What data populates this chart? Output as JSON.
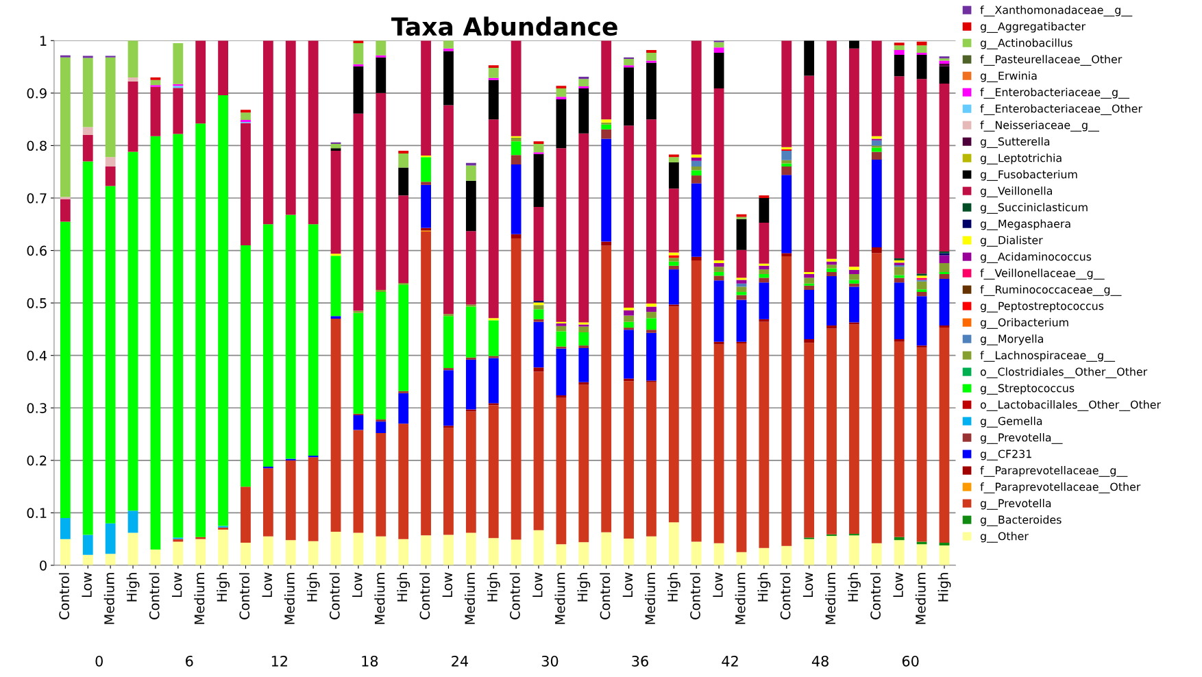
{
  "chart_data": {
    "type": "bar",
    "stacked": true,
    "title": "Taxa Abundance",
    "categories": [
      "Control",
      "Low",
      "Medium",
      "High",
      "Control",
      "Low",
      "Medium",
      "High",
      "Control",
      "Low",
      "Medium",
      "High",
      "Control",
      "Low",
      "Medium",
      "High",
      "Control",
      "Low",
      "Medium",
      "High",
      "Control",
      "Low",
      "Medium",
      "High",
      "Control",
      "Low",
      "Medium",
      "High",
      "Control",
      "Low",
      "Medium",
      "High",
      "Control",
      "Low",
      "Medium",
      "High",
      "Control",
      "Low",
      "Medium",
      "High"
    ],
    "annotations": [
      "0",
      "6",
      "12",
      "18",
      "24",
      "30",
      "36",
      "42",
      "48",
      "60"
    ],
    "ylim": [
      0,
      1
    ],
    "yticks": [
      0,
      0.1,
      0.2,
      0.3,
      0.4,
      0.5,
      0.6,
      0.7,
      0.8,
      0.9,
      1
    ],
    "grid": "y",
    "legend": "right",
    "series": [
      {
        "name": "g__Other",
        "color": "#ffff99",
        "values": [
          0.05,
          0.02,
          0.022,
          0.062,
          0.03,
          0.045,
          0.05,
          0.068,
          0.043,
          0.055,
          0.048,
          0.046,
          0.064,
          0.062,
          0.055,
          0.05,
          0.057,
          0.058,
          0.062,
          0.052,
          0.049,
          0.067,
          0.04,
          0.044,
          0.063,
          0.051,
          0.055,
          0.082,
          0.045,
          0.042,
          0.025,
          0.033,
          0.037,
          0.05,
          0.056,
          0.057,
          0.042,
          0.048,
          0.04,
          0.038
        ]
      },
      {
        "name": "g__Bacteroides",
        "color": "#108a10",
        "values": [
          0,
          0,
          0,
          0,
          0,
          0,
          0,
          0,
          0,
          0,
          0,
          0,
          0,
          0,
          0,
          0,
          0,
          0,
          0,
          0,
          0,
          0,
          0,
          0,
          0,
          0,
          0,
          0,
          0,
          0,
          0,
          0,
          0,
          0.003,
          0.003,
          0.003,
          0,
          0.006,
          0.005,
          0.005
        ]
      },
      {
        "name": "g__Prevotella",
        "color": "#d0381e",
        "values": [
          0,
          0,
          0,
          0,
          0,
          0.005,
          0.004,
          0.004,
          0.107,
          0.13,
          0.152,
          0.16,
          0.406,
          0.196,
          0.197,
          0.22,
          0.579,
          0.204,
          0.231,
          0.253,
          0.574,
          0.302,
          0.279,
          0.3,
          0.546,
          0.3,
          0.294,
          0.411,
          0.536,
          0.379,
          0.398,
          0.431,
          0.552,
          0.371,
          0.392,
          0.399,
          0.553,
          0.372,
          0.37,
          0.41
        ]
      },
      {
        "name": "f__Paraprevotellaceae__Other",
        "color": "#ff9900",
        "values": [
          0,
          0,
          0,
          0,
          0,
          0,
          0,
          0,
          0,
          0,
          0,
          0,
          0,
          0,
          0,
          0,
          0.002,
          0,
          0,
          0,
          0,
          0,
          0,
          0,
          0,
          0,
          0,
          0,
          0,
          0,
          0,
          0,
          0,
          0,
          0,
          0,
          0,
          0,
          0,
          0
        ]
      },
      {
        "name": "f__Paraprevotellaceae__g__",
        "color": "#a00000",
        "values": [
          0,
          0,
          0,
          0,
          0,
          0,
          0,
          0,
          0,
          0,
          0,
          0,
          0,
          0,
          0,
          0,
          0.005,
          0.004,
          0.004,
          0.004,
          0.008,
          0.008,
          0.005,
          0.005,
          0.008,
          0.005,
          0.003,
          0.004,
          0.007,
          0.005,
          0.003,
          0.005,
          0.006,
          0.007,
          0.006,
          0.004,
          0.011,
          0.005,
          0.004,
          0.004
        ]
      },
      {
        "name": "g__CF231",
        "color": "#0000ff",
        "values": [
          0,
          0,
          0,
          0,
          0,
          0,
          0,
          0,
          0,
          0.003,
          0.003,
          0.003,
          0.005,
          0.028,
          0.022,
          0.058,
          0.082,
          0.106,
          0.095,
          0.086,
          0.133,
          0.087,
          0.089,
          0.065,
          0.196,
          0.093,
          0.091,
          0.067,
          0.14,
          0.117,
          0.08,
          0.07,
          0.149,
          0.094,
          0.094,
          0.068,
          0.167,
          0.108,
          0.094,
          0.089
        ]
      },
      {
        "name": "g__Prevotella__",
        "color": "#993333",
        "values": [
          0,
          0,
          0,
          0,
          0,
          0,
          0,
          0,
          0,
          0,
          0,
          0,
          0,
          0.003,
          0.004,
          0.004,
          0.006,
          0.004,
          0.004,
          0.004,
          0.018,
          0.005,
          0.004,
          0.005,
          0.018,
          0.004,
          0.006,
          0.007,
          0.015,
          0.009,
          0.009,
          0.009,
          0.016,
          0.008,
          0.008,
          0.006,
          0.015,
          0.009,
          0.008,
          0.009
        ]
      },
      {
        "name": "g__Gemella",
        "color": "#00b0f0",
        "values": [
          0.04,
          0.038,
          0.058,
          0.042,
          0,
          0.003,
          0,
          0.003,
          0,
          0,
          0,
          0,
          0,
          0,
          0,
          0,
          0,
          0,
          0,
          0,
          0,
          0,
          0,
          0,
          0,
          0,
          0,
          0,
          0,
          0,
          0,
          0,
          0,
          0,
          0,
          0,
          0,
          0,
          0,
          0
        ]
      },
      {
        "name": "o__Lactobacillales__Other__Other",
        "color": "#c00000",
        "values": [
          0,
          0,
          0,
          0,
          0,
          0,
          0,
          0,
          0,
          0,
          0,
          0,
          0,
          0,
          0,
          0,
          0,
          0,
          0,
          0,
          0,
          0,
          0,
          0,
          0,
          0,
          0,
          0,
          0,
          0,
          0,
          0,
          0,
          0,
          0,
          0,
          0,
          0,
          0,
          0
        ]
      },
      {
        "name": "g__Streptococcus",
        "color": "#00ff00",
        "values": [
          0.565,
          0.712,
          0.643,
          0.684,
          0.788,
          0.769,
          0.788,
          0.821,
          0.46,
          0.462,
          0.465,
          0.441,
          0.115,
          0.192,
          0.243,
          0.203,
          0.047,
          0.099,
          0.097,
          0.068,
          0.026,
          0.019,
          0.029,
          0.025,
          0.009,
          0.011,
          0.022,
          0.008,
          0.01,
          0.007,
          0.006,
          0.007,
          0.006,
          0.004,
          0.007,
          0.007,
          0.008,
          0.005,
          0.005,
          0.004
        ]
      },
      {
        "name": "o__Clostridiales__Other__Other",
        "color": "#00b050",
        "values": [
          0,
          0,
          0,
          0,
          0,
          0,
          0,
          0,
          0,
          0,
          0,
          0,
          0,
          0,
          0,
          0,
          0,
          0,
          0,
          0,
          0,
          0,
          0,
          0,
          0,
          0,
          0,
          0,
          0,
          0,
          0,
          0,
          0,
          0,
          0,
          0,
          0,
          0,
          0,
          0
        ]
      },
      {
        "name": "f__Lachnospiraceae__g__",
        "color": "#86a030",
        "values": [
          0,
          0,
          0,
          0,
          0,
          0,
          0,
          0,
          0,
          0,
          0,
          0,
          0,
          0.004,
          0.004,
          0.003,
          0,
          0.004,
          0.004,
          0,
          0.007,
          0.008,
          0.01,
          0.011,
          0.004,
          0.012,
          0.012,
          0.007,
          0.007,
          0.01,
          0.01,
          0.009,
          0.006,
          0.011,
          0.007,
          0.011,
          0.004,
          0.016,
          0.015,
          0.017
        ]
      },
      {
        "name": "g__Moryella",
        "color": "#4f81bd",
        "values": [
          0,
          0,
          0,
          0,
          0,
          0,
          0,
          0,
          0,
          0,
          0,
          0,
          0,
          0,
          0,
          0,
          0,
          0,
          0,
          0,
          0,
          0,
          0,
          0,
          0,
          0,
          0,
          0,
          0.011,
          0,
          0.006,
          0,
          0.018,
          0,
          0,
          0,
          0.01,
          0.003,
          0.003,
          0
        ]
      },
      {
        "name": "g__Oribacterium",
        "color": "#ff6a00",
        "values": [
          0,
          0,
          0,
          0,
          0,
          0,
          0,
          0,
          0,
          0,
          0,
          0,
          0,
          0,
          0,
          0,
          0,
          0,
          0,
          0,
          0,
          0,
          0,
          0,
          0,
          0,
          0,
          0,
          0,
          0,
          0,
          0,
          0,
          0,
          0,
          0,
          0,
          0,
          0,
          0
        ]
      },
      {
        "name": "g__Peptostreptococcus",
        "color": "#ff0000",
        "values": [
          0,
          0,
          0,
          0,
          0,
          0,
          0,
          0,
          0,
          0,
          0,
          0,
          0,
          0,
          0,
          0,
          0,
          0,
          0,
          0,
          0,
          0,
          0,
          0,
          0,
          0,
          0,
          0.005,
          0,
          0,
          0,
          0,
          0.003,
          0,
          0,
          0,
          0,
          0,
          0,
          0
        ]
      },
      {
        "name": "f__Ruminococcaceae__g__",
        "color": "#663300",
        "values": [
          0,
          0,
          0,
          0,
          0,
          0,
          0,
          0,
          0,
          0,
          0,
          0,
          0,
          0,
          0,
          0,
          0,
          0,
          0,
          0,
          0,
          0,
          0,
          0,
          0,
          0,
          0,
          0,
          0,
          0,
          0,
          0,
          0,
          0,
          0,
          0,
          0,
          0,
          0,
          0
        ]
      },
      {
        "name": "f__Veillonellaceae__g__",
        "color": "#ff0066",
        "values": [
          0,
          0,
          0,
          0,
          0,
          0,
          0,
          0,
          0,
          0,
          0,
          0,
          0,
          0,
          0,
          0,
          0,
          0,
          0,
          0,
          0,
          0,
          0,
          0,
          0,
          0,
          0,
          0,
          0,
          0,
          0,
          0,
          0,
          0,
          0,
          0,
          0,
          0,
          0.004,
          0
        ]
      },
      {
        "name": "g__Acidaminococcus",
        "color": "#990099",
        "values": [
          0,
          0,
          0,
          0,
          0,
          0,
          0,
          0,
          0,
          0,
          0,
          0,
          0,
          0,
          0,
          0,
          0,
          0,
          0,
          0,
          0,
          0,
          0.005,
          0.004,
          0,
          0.01,
          0.01,
          0,
          0.006,
          0.007,
          0.007,
          0.007,
          0,
          0.007,
          0.006,
          0.008,
          0.003,
          0.005,
          0,
          0.015
        ]
      },
      {
        "name": "g__Dialister",
        "color": "#ffff00",
        "values": [
          0,
          0,
          0,
          0,
          0,
          0,
          0,
          0,
          0,
          0,
          0,
          0,
          0.004,
          0,
          0,
          0,
          0.003,
          0,
          0,
          0.004,
          0.003,
          0.005,
          0.003,
          0.004,
          0.006,
          0.005,
          0.006,
          0.005,
          0.006,
          0.005,
          0.004,
          0.004,
          0.004,
          0.004,
          0.005,
          0.006,
          0.005,
          0.004,
          0.004,
          0
        ]
      },
      {
        "name": "g__Megasphaera",
        "color": "#000066",
        "values": [
          0,
          0,
          0,
          0,
          0,
          0,
          0,
          0,
          0,
          0,
          0,
          0,
          0,
          0,
          0,
          0,
          0,
          0,
          0,
          0,
          0,
          0.003,
          0,
          0,
          0,
          0,
          0,
          0,
          0,
          0,
          0,
          0,
          0,
          0,
          0,
          0,
          0,
          0,
          0,
          0.004
        ]
      },
      {
        "name": "g__Succiniclasticum",
        "color": "#004d26",
        "values": [
          0,
          0,
          0,
          0,
          0,
          0,
          0,
          0,
          0,
          0,
          0,
          0,
          0,
          0,
          0,
          0,
          0,
          0,
          0,
          0,
          0,
          0,
          0,
          0,
          0,
          0,
          0,
          0,
          0,
          0,
          0,
          0,
          0,
          0,
          0,
          0,
          0,
          0.004,
          0.004,
          0.003
        ]
      },
      {
        "name": "g__Veillonella",
        "color": "#c00f45",
        "values": [
          0.043,
          0.05,
          0.037,
          0.134,
          0.094,
          0.088,
          0.158,
          0.104,
          0.233,
          0.35,
          0.332,
          0.35,
          0.196,
          0.376,
          0.375,
          0.167,
          0.219,
          0.398,
          0.14,
          0.379,
          0.182,
          0.179,
          0.331,
          0.36,
          0.15,
          0.347,
          0.351,
          0.122,
          0.217,
          0.328,
          0.053,
          0.078,
          0.203,
          0.374,
          0.416,
          0.416,
          0.182,
          0.347,
          0.371,
          0.32
        ]
      },
      {
        "name": "g__Fusobacterium",
        "color": "#000000",
        "values": [
          0,
          0,
          0,
          0,
          0,
          0,
          0,
          0,
          0,
          0,
          0,
          0,
          0.005,
          0.09,
          0.068,
          0.053,
          0,
          0.103,
          0.096,
          0.075,
          0,
          0.101,
          0.093,
          0.086,
          0,
          0.111,
          0.108,
          0.05,
          0,
          0.068,
          0.059,
          0.047,
          0,
          0.067,
          0,
          0.015,
          0,
          0.041,
          0.046,
          0.033
        ]
      },
      {
        "name": "g__Leptotrichia",
        "color": "#b8b800",
        "values": [
          0,
          0,
          0,
          0,
          0,
          0,
          0,
          0,
          0,
          0,
          0,
          0,
          0,
          0,
          0,
          0,
          0,
          0,
          0,
          0,
          0,
          0,
          0,
          0,
          0,
          0,
          0,
          0,
          0,
          0,
          0,
          0,
          0,
          0,
          0,
          0,
          0,
          0,
          0,
          0
        ]
      },
      {
        "name": "g__Sutterella",
        "color": "#4d0039",
        "values": [
          0,
          0,
          0,
          0,
          0,
          0,
          0,
          0,
          0,
          0,
          0,
          0,
          0,
          0,
          0,
          0,
          0,
          0,
          0,
          0,
          0,
          0,
          0,
          0,
          0,
          0,
          0,
          0,
          0,
          0,
          0,
          0,
          0,
          0,
          0,
          0,
          0,
          0,
          0,
          0.005
        ]
      },
      {
        "name": "f__Neisseriaceae__g__",
        "color": "#e6b8b7",
        "values": [
          0.004,
          0.015,
          0.018,
          0.008,
          0,
          0,
          0,
          0,
          0,
          0,
          0,
          0,
          0,
          0,
          0,
          0,
          0,
          0,
          0,
          0,
          0,
          0,
          0,
          0,
          0,
          0,
          0,
          0,
          0,
          0,
          0,
          0,
          0,
          0,
          0,
          0,
          0,
          0,
          0,
          0
        ]
      },
      {
        "name": "f__Enterobacteriaceae__Other",
        "color": "#66ccff",
        "values": [
          0,
          0,
          0,
          0,
          0,
          0.004,
          0,
          0,
          0.002,
          0,
          0,
          0,
          0,
          0,
          0,
          0,
          0,
          0,
          0,
          0,
          0,
          0,
          0,
          0,
          0,
          0,
          0,
          0,
          0,
          0,
          0,
          0,
          0,
          0,
          0,
          0,
          0,
          0,
          0,
          0
        ]
      },
      {
        "name": "f__Enterobacteriaceae__g__",
        "color": "#ff00ff",
        "values": [
          0,
          0,
          0,
          0,
          0.003,
          0.003,
          0,
          0,
          0.004,
          0,
          0,
          0,
          0,
          0.004,
          0.004,
          0,
          0,
          0.005,
          0,
          0.004,
          0,
          0.003,
          0.005,
          0.004,
          0,
          0.004,
          0.004,
          0,
          0,
          0.01,
          0,
          0,
          0,
          0,
          0,
          0,
          0,
          0.009,
          0.004,
          0.006
        ]
      },
      {
        "name": "g__Erwinia",
        "color": "#f07020",
        "values": [
          0,
          0,
          0,
          0,
          0,
          0,
          0,
          0,
          0,
          0,
          0,
          0,
          0,
          0,
          0,
          0,
          0,
          0,
          0,
          0,
          0,
          0,
          0,
          0,
          0,
          0,
          0,
          0,
          0,
          0,
          0,
          0,
          0,
          0,
          0,
          0,
          0,
          0,
          0,
          0
        ]
      },
      {
        "name": "f__Pasteurellaceae__Other",
        "color": "#4f6228",
        "values": [
          0,
          0,
          0,
          0,
          0,
          0,
          0,
          0,
          0,
          0,
          0,
          0,
          0,
          0,
          0,
          0,
          0,
          0,
          0,
          0,
          0,
          0,
          0,
          0,
          0,
          0,
          0,
          0,
          0,
          0,
          0,
          0,
          0,
          0,
          0,
          0,
          0,
          0,
          0,
          0
        ]
      },
      {
        "name": "g__Actinobacillus",
        "color": "#92d050",
        "values": [
          0.266,
          0.132,
          0.19,
          0.07,
          0.01,
          0.078,
          0,
          0,
          0.014,
          0,
          0,
          0,
          0.008,
          0.04,
          0.028,
          0.027,
          0,
          0.015,
          0.029,
          0.019,
          0,
          0.016,
          0.016,
          0.014,
          0,
          0.012,
          0.015,
          0.01,
          0,
          0.01,
          0.004,
          0,
          0,
          0,
          0,
          0,
          0,
          0.009,
          0.014,
          0.004
        ]
      },
      {
        "name": "g__Aggregatibacter",
        "color": "#e00000",
        "values": [
          0,
          0,
          0,
          0,
          0.005,
          0,
          0,
          0,
          0.005,
          0,
          0,
          0,
          0,
          0.005,
          0,
          0.005,
          0,
          0,
          0,
          0.005,
          0,
          0.005,
          0.005,
          0,
          0,
          0,
          0.005,
          0.005,
          0,
          0,
          0.005,
          0.005,
          0,
          0,
          0,
          0,
          0,
          0.005,
          0.007,
          0
        ]
      },
      {
        "name": "f__Xanthomonadaceae__g__",
        "color": "#7030a0",
        "values": [
          0.004,
          0.004,
          0.003,
          0,
          0,
          0,
          0,
          0,
          0,
          0,
          0,
          0,
          0.003,
          0,
          0,
          0,
          0,
          0,
          0.005,
          0,
          0,
          0,
          0,
          0.004,
          0,
          0.003,
          0,
          0,
          0,
          0.003,
          0,
          0,
          0,
          0,
          0,
          0,
          0,
          0,
          0,
          0.004
        ]
      }
    ]
  }
}
